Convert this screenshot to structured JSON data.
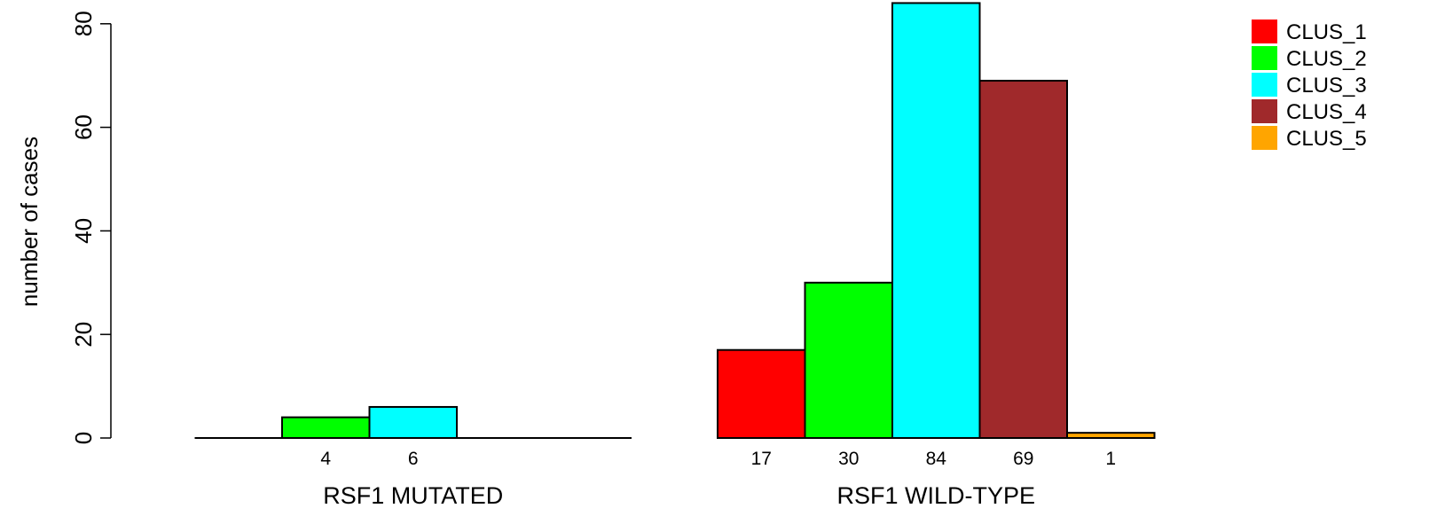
{
  "chart_data": {
    "type": "bar",
    "title": "",
    "ylabel": "number of cases",
    "ylim": [
      0,
      80
    ],
    "yticks": [
      0,
      20,
      40,
      60,
      80
    ],
    "grid": false,
    "legend_position": "top-right",
    "series": [
      {
        "name": "CLUS_1",
        "color": "#FF0000"
      },
      {
        "name": "CLUS_2",
        "color": "#00FF00"
      },
      {
        "name": "CLUS_3",
        "color": "#00FFFF"
      },
      {
        "name": "CLUS_4",
        "color": "#A0292B"
      },
      {
        "name": "CLUS_5",
        "color": "#FFA500"
      }
    ],
    "groups": [
      {
        "label": "RSF1 MUTATED",
        "values": [
          0,
          4,
          6,
          0,
          0
        ],
        "value_labels": [
          "",
          "4",
          "6",
          "",
          ""
        ]
      },
      {
        "label": "RSF1 WILD-TYPE",
        "values": [
          17,
          30,
          84,
          69,
          1
        ],
        "value_labels": [
          "17",
          "30",
          "84",
          "69",
          "1"
        ]
      }
    ]
  }
}
